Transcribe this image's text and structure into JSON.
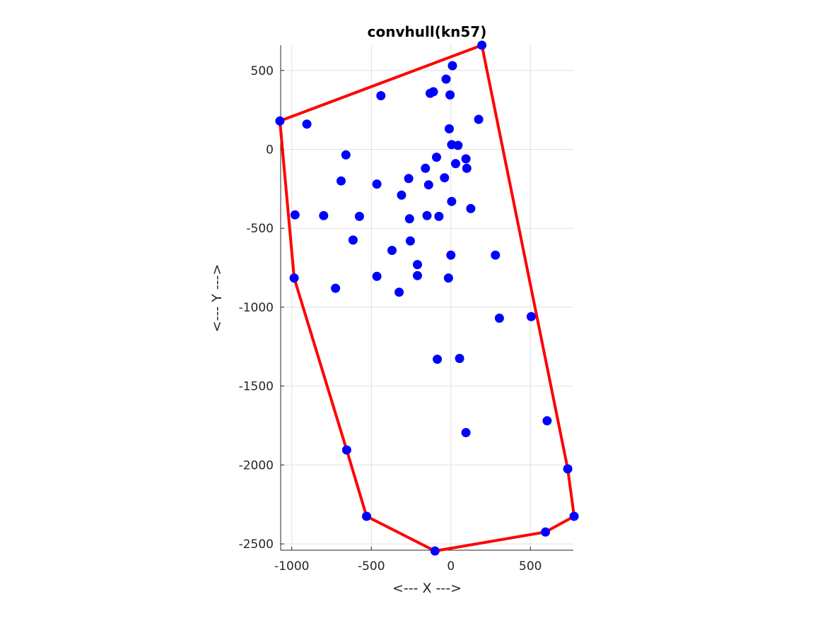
{
  "chart_data": {
    "type": "scatter",
    "title": "convhull(kn57)",
    "xlabel": "<--- X --->",
    "ylabel": "<--- Y --->",
    "xlim": [
      -1070,
      770
    ],
    "ylim": [
      -2540,
      660
    ],
    "xticks": [
      -1000,
      -500,
      0,
      500
    ],
    "xtick_labels": [
      "-1000",
      "-500",
      "0",
      "500"
    ],
    "yticks": [
      -2500,
      -2000,
      -1500,
      -1000,
      -500,
      0,
      500
    ],
    "ytick_labels": [
      "-2500",
      "-2000",
      "-1500",
      "-1000",
      "-500",
      "0",
      "500"
    ],
    "grid": true,
    "colors": {
      "points": "#0000ff",
      "hull": "#ff0000",
      "grid": "#e0e0e0",
      "axis": "#262626"
    },
    "series": [
      {
        "type": "scatter",
        "points": [
          [
            195,
            660
          ],
          [
            10,
            530
          ],
          [
            -30,
            445
          ],
          [
            -110,
            365
          ],
          [
            -130,
            355
          ],
          [
            -5,
            345
          ],
          [
            -440,
            340
          ],
          [
            -1075,
            180
          ],
          [
            -905,
            160
          ],
          [
            175,
            190
          ],
          [
            -10,
            130
          ],
          [
            5,
            30
          ],
          [
            45,
            25
          ],
          [
            -660,
            -35
          ],
          [
            -90,
            -50
          ],
          [
            95,
            -60
          ],
          [
            30,
            -90
          ],
          [
            100,
            -120
          ],
          [
            -160,
            -120
          ],
          [
            -690,
            -200
          ],
          [
            -265,
            -185
          ],
          [
            -40,
            -180
          ],
          [
            -465,
            -220
          ],
          [
            -140,
            -225
          ],
          [
            -310,
            -290
          ],
          [
            5,
            -330
          ],
          [
            125,
            -375
          ],
          [
            -980,
            -415
          ],
          [
            -800,
            -420
          ],
          [
            -575,
            -425
          ],
          [
            -150,
            -420
          ],
          [
            -75,
            -425
          ],
          [
            -260,
            -440
          ],
          [
            -615,
            -575
          ],
          [
            -255,
            -580
          ],
          [
            -370,
            -640
          ],
          [
            0,
            -670
          ],
          [
            280,
            -670
          ],
          [
            -210,
            -730
          ],
          [
            -985,
            -815
          ],
          [
            -465,
            -805
          ],
          [
            -210,
            -800
          ],
          [
            -15,
            -815
          ],
          [
            -725,
            -880
          ],
          [
            -325,
            -905
          ],
          [
            505,
            -1060
          ],
          [
            305,
            -1070
          ],
          [
            -85,
            -1330
          ],
          [
            55,
            -1325
          ],
          [
            605,
            -1720
          ],
          [
            95,
            -1795
          ],
          [
            -655,
            -1905
          ],
          [
            735,
            -2025
          ],
          [
            -530,
            -2325
          ],
          [
            775,
            -2325
          ],
          [
            595,
            -2425
          ],
          [
            -100,
            -2545
          ]
        ]
      },
      {
        "type": "line",
        "points": [
          [
            195,
            660
          ],
          [
            -1075,
            180
          ],
          [
            -985,
            -815
          ],
          [
            -655,
            -1905
          ],
          [
            -530,
            -2325
          ],
          [
            -100,
            -2545
          ],
          [
            595,
            -2425
          ],
          [
            775,
            -2325
          ],
          [
            735,
            -2025
          ],
          [
            195,
            660
          ]
        ]
      }
    ]
  }
}
